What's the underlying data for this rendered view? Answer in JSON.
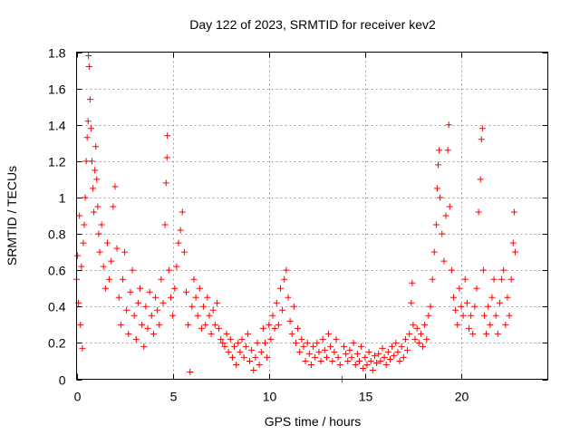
{
  "chart_data": {
    "type": "scatter",
    "title": "Day 122 of 2023, SRMTID for receiver kev2",
    "xlabel": "GPS time / hours",
    "ylabel": "SRMTID / TECUs",
    "xlim": [
      0,
      24.5
    ],
    "ylim": [
      0,
      1.8
    ],
    "xticks": [
      0,
      5,
      10,
      15,
      20
    ],
    "xtick_labels": [
      "0",
      "5",
      "10",
      "15",
      "20"
    ],
    "yticks": [
      0,
      0.2,
      0.4,
      0.6,
      0.8,
      1.0,
      1.2,
      1.4,
      1.6,
      1.8
    ],
    "ytick_labels": [
      "0",
      "0.2",
      "0.4",
      "0.6",
      "0.8",
      "1",
      "1.2",
      "1.4",
      "1.6",
      "1.8"
    ],
    "grid": true,
    "marker": "+",
    "color": "#ff0000",
    "series": [
      {
        "name": "SRMTID",
        "points": [
          [
            0.0,
            0.55
          ],
          [
            0.05,
            0.68
          ],
          [
            0.1,
            0.42
          ],
          [
            0.15,
            0.9
          ],
          [
            0.2,
            0.3
          ],
          [
            0.25,
            0.62
          ],
          [
            0.3,
            0.17
          ],
          [
            0.35,
            0.75
          ],
          [
            0.4,
            0.85
          ],
          [
            0.45,
            1.0
          ],
          [
            0.5,
            1.2
          ],
          [
            0.55,
            1.33
          ],
          [
            0.6,
            1.42
          ],
          [
            0.62,
            1.78
          ],
          [
            0.65,
            1.72
          ],
          [
            0.7,
            1.54
          ],
          [
            0.75,
            1.38
          ],
          [
            0.8,
            1.2
          ],
          [
            0.85,
            1.05
          ],
          [
            0.9,
            0.92
          ],
          [
            0.95,
            1.15
          ],
          [
            1.0,
            1.28
          ],
          [
            1.05,
            1.1
          ],
          [
            1.1,
            0.95
          ],
          [
            1.15,
            0.8
          ],
          [
            1.2,
            0.7
          ],
          [
            1.3,
            0.85
          ],
          [
            1.4,
            0.62
          ],
          [
            1.5,
            0.5
          ],
          [
            1.6,
            0.75
          ],
          [
            1.7,
            0.55
          ],
          [
            1.8,
            0.65
          ],
          [
            1.9,
            0.95
          ],
          [
            2.0,
            1.06
          ],
          [
            2.1,
            0.72
          ],
          [
            2.2,
            0.45
          ],
          [
            2.3,
            0.3
          ],
          [
            2.4,
            0.55
          ],
          [
            2.5,
            0.7
          ],
          [
            2.6,
            0.38
          ],
          [
            2.7,
            0.25
          ],
          [
            2.8,
            0.48
          ],
          [
            2.9,
            0.6
          ],
          [
            3.0,
            0.35
          ],
          [
            3.1,
            0.22
          ],
          [
            3.2,
            0.42
          ],
          [
            3.3,
            0.5
          ],
          [
            3.4,
            0.3
          ],
          [
            3.5,
            0.18
          ],
          [
            3.6,
            0.4
          ],
          [
            3.7,
            0.28
          ],
          [
            3.8,
            0.48
          ],
          [
            3.9,
            0.35
          ],
          [
            4.0,
            0.25
          ],
          [
            4.1,
            0.45
          ],
          [
            4.2,
            0.38
          ],
          [
            4.3,
            0.3
          ],
          [
            4.4,
            0.55
          ],
          [
            4.5,
            0.42
          ],
          [
            4.6,
            0.85
          ],
          [
            4.65,
            1.08
          ],
          [
            4.7,
            1.22
          ],
          [
            4.72,
            1.34
          ],
          [
            4.8,
            0.6
          ],
          [
            4.9,
            0.45
          ],
          [
            5.0,
            0.35
          ],
          [
            5.1,
            0.5
          ],
          [
            5.2,
            0.62
          ],
          [
            5.3,
            0.75
          ],
          [
            5.4,
            0.82
          ],
          [
            5.5,
            0.92
          ],
          [
            5.6,
            0.7
          ],
          [
            5.7,
            0.48
          ],
          [
            5.8,
            0.3
          ],
          [
            5.9,
            0.04
          ],
          [
            6.0,
            0.4
          ],
          [
            6.1,
            0.55
          ],
          [
            6.2,
            0.45
          ],
          [
            6.3,
            0.35
          ],
          [
            6.4,
            0.5
          ],
          [
            6.5,
            0.28
          ],
          [
            6.6,
            0.4
          ],
          [
            6.7,
            0.3
          ],
          [
            6.8,
            0.45
          ],
          [
            6.9,
            0.35
          ],
          [
            7.0,
            0.25
          ],
          [
            7.1,
            0.38
          ],
          [
            7.2,
            0.3
          ],
          [
            7.3,
            0.42
          ],
          [
            7.4,
            0.28
          ],
          [
            7.5,
            0.22
          ],
          [
            7.6,
            0.2
          ],
          [
            7.7,
            0.18
          ],
          [
            7.8,
            0.25
          ],
          [
            7.9,
            0.15
          ],
          [
            8.0,
            0.22
          ],
          [
            8.1,
            0.12
          ],
          [
            8.2,
            0.18
          ],
          [
            8.3,
            0.08
          ],
          [
            8.4,
            0.2
          ],
          [
            8.5,
            0.15
          ],
          [
            8.6,
            0.22
          ],
          [
            8.7,
            0.12
          ],
          [
            8.8,
            0.18
          ],
          [
            8.9,
            0.25
          ],
          [
            9.0,
            0.1
          ],
          [
            9.1,
            0.16
          ],
          [
            9.2,
            0.05
          ],
          [
            9.3,
            0.12
          ],
          [
            9.4,
            0.2
          ],
          [
            9.5,
            0.08
          ],
          [
            9.6,
            0.15
          ],
          [
            9.7,
            0.28
          ],
          [
            9.8,
            0.2
          ],
          [
            9.9,
            0.12
          ],
          [
            10.0,
            0.3
          ],
          [
            10.1,
            0.22
          ],
          [
            10.2,
            0.35
          ],
          [
            10.3,
            0.28
          ],
          [
            10.4,
            0.42
          ],
          [
            10.5,
            0.3
          ],
          [
            10.6,
            0.5
          ],
          [
            10.7,
            0.38
          ],
          [
            10.8,
            0.55
          ],
          [
            10.9,
            0.6
          ],
          [
            11.0,
            0.45
          ],
          [
            11.1,
            0.32
          ],
          [
            11.2,
            0.25
          ],
          [
            11.3,
            0.4
          ],
          [
            11.4,
            0.2
          ],
          [
            11.5,
            0.28
          ],
          [
            11.6,
            0.15
          ],
          [
            11.7,
            0.22
          ],
          [
            11.8,
            0.18
          ],
          [
            11.9,
            0.1
          ],
          [
            12.0,
            0.2
          ],
          [
            12.1,
            0.14
          ],
          [
            12.2,
            0.08
          ],
          [
            12.3,
            0.18
          ],
          [
            12.4,
            0.12
          ],
          [
            12.5,
            0.2
          ],
          [
            12.6,
            0.15
          ],
          [
            12.7,
            0.1
          ],
          [
            12.8,
            0.22
          ],
          [
            12.9,
            0.16
          ],
          [
            13.0,
            0.12
          ],
          [
            13.1,
            0.25
          ],
          [
            13.2,
            0.18
          ],
          [
            13.3,
            0.1
          ],
          [
            13.4,
            0.15
          ],
          [
            13.5,
            0.22
          ],
          [
            13.6,
            0.12
          ],
          [
            13.7,
            0.08
          ],
          [
            13.8,
            0.0
          ],
          [
            13.9,
            0.18
          ],
          [
            14.0,
            0.14
          ],
          [
            14.1,
            0.1
          ],
          [
            14.2,
            0.16
          ],
          [
            14.3,
            0.12
          ],
          [
            14.4,
            0.2
          ],
          [
            14.5,
            0.08
          ],
          [
            14.6,
            0.14
          ],
          [
            14.7,
            0.1
          ],
          [
            14.8,
            0.18
          ],
          [
            14.9,
            0.06
          ],
          [
            15.0,
            0.12
          ],
          [
            15.1,
            0.08
          ],
          [
            15.2,
            0.15
          ],
          [
            15.3,
            0.1
          ],
          [
            15.4,
            0.05
          ],
          [
            15.5,
            0.13
          ],
          [
            15.6,
            0.09
          ],
          [
            15.7,
            0.14
          ],
          [
            15.8,
            0.1
          ],
          [
            15.9,
            0.17
          ],
          [
            16.0,
            0.12
          ],
          [
            16.1,
            0.08
          ],
          [
            16.2,
            0.15
          ],
          [
            16.3,
            0.11
          ],
          [
            16.4,
            0.18
          ],
          [
            16.5,
            0.13
          ],
          [
            16.6,
            0.2
          ],
          [
            16.7,
            0.15
          ],
          [
            16.8,
            0.1
          ],
          [
            16.9,
            0.18
          ],
          [
            17.0,
            0.12
          ],
          [
            17.1,
            0.22
          ],
          [
            17.2,
            0.16
          ],
          [
            17.3,
            0.25
          ],
          [
            17.4,
            0.42
          ],
          [
            17.45,
            0.53
          ],
          [
            17.5,
            0.3
          ],
          [
            17.6,
            0.22
          ],
          [
            17.7,
            0.28
          ],
          [
            17.8,
            0.2
          ],
          [
            17.9,
            0.25
          ],
          [
            18.0,
            0.18
          ],
          [
            18.1,
            0.3
          ],
          [
            18.2,
            0.22
          ],
          [
            18.3,
            0.35
          ],
          [
            18.4,
            0.4
          ],
          [
            18.5,
            0.55
          ],
          [
            18.6,
            0.7
          ],
          [
            18.7,
            0.85
          ],
          [
            18.75,
            1.05
          ],
          [
            18.8,
            1.18
          ],
          [
            18.85,
            1.26
          ],
          [
            18.9,
            1.0
          ],
          [
            19.0,
            0.8
          ],
          [
            19.1,
            0.65
          ],
          [
            19.2,
            0.9
          ],
          [
            19.3,
            1.26
          ],
          [
            19.35,
            1.4
          ],
          [
            19.4,
            0.95
          ],
          [
            19.5,
            0.6
          ],
          [
            19.6,
            0.45
          ],
          [
            19.7,
            0.38
          ],
          [
            19.8,
            0.3
          ],
          [
            19.9,
            0.5
          ],
          [
            20.0,
            0.4
          ],
          [
            20.1,
            0.35
          ],
          [
            20.2,
            0.55
          ],
          [
            20.3,
            0.42
          ],
          [
            20.4,
            0.28
          ],
          [
            20.5,
            0.35
          ],
          [
            20.6,
            0.25
          ],
          [
            20.7,
            0.4
          ],
          [
            20.8,
            0.5
          ],
          [
            20.9,
            0.92
          ],
          [
            21.0,
            1.1
          ],
          [
            21.05,
            1.32
          ],
          [
            21.1,
            1.38
          ],
          [
            21.15,
            0.6
          ],
          [
            21.2,
            0.35
          ],
          [
            21.3,
            0.25
          ],
          [
            21.4,
            0.4
          ],
          [
            21.5,
            0.3
          ],
          [
            21.6,
            0.45
          ],
          [
            21.7,
            0.55
          ],
          [
            21.8,
            0.35
          ],
          [
            21.9,
            0.25
          ],
          [
            22.0,
            0.42
          ],
          [
            22.1,
            0.55
          ],
          [
            22.2,
            0.6
          ],
          [
            22.3,
            0.3
          ],
          [
            22.4,
            0.45
          ],
          [
            22.5,
            0.35
          ],
          [
            22.6,
            0.55
          ],
          [
            22.7,
            0.75
          ],
          [
            22.75,
            0.92
          ],
          [
            22.8,
            0.7
          ]
        ]
      }
    ]
  }
}
